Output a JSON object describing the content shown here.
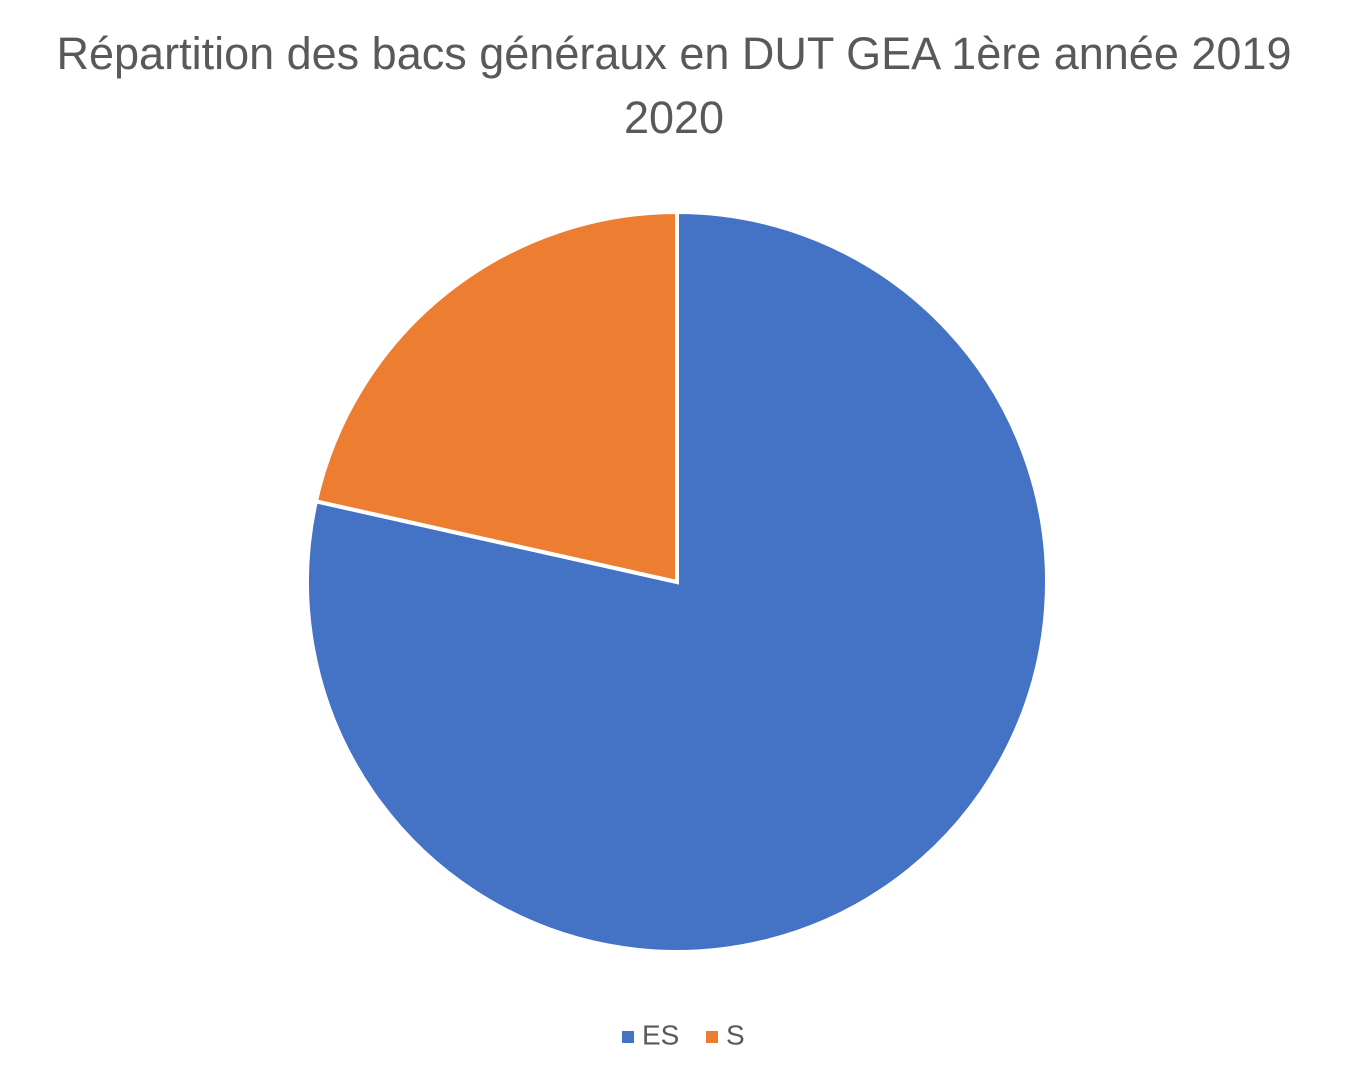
{
  "chart_data": {
    "type": "pie",
    "title": "Répartition des bacs généraux en DUT GEA 1ère année 2019 2020",
    "categories": [
      "ES",
      "S"
    ],
    "values": [
      78.5,
      21.5
    ],
    "colors": [
      "#4472c4",
      "#ed7d31"
    ],
    "legend": "bottom"
  }
}
